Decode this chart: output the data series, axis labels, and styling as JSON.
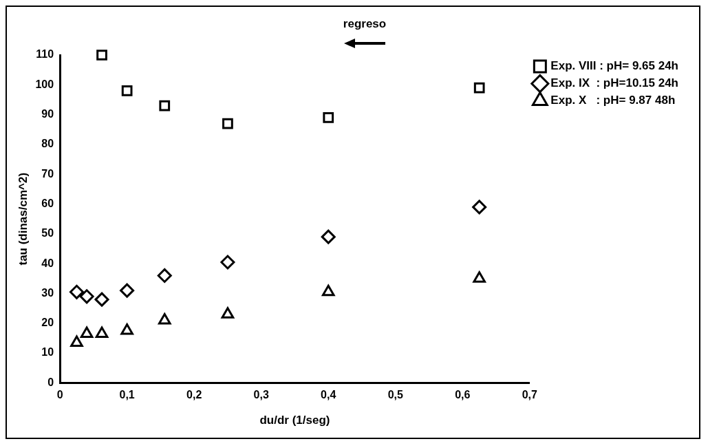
{
  "chart_data": {
    "type": "scatter",
    "xlabel": "du/dr (1/seg)",
    "ylabel": "tau (dinas/cm^2)",
    "annotations": [
      "regreso"
    ],
    "series": [
      {
        "name": "Exp. VIII : pH= 9.65 24h",
        "color": "#000000",
        "marker": "square",
        "x": [
          0.0625,
          0.1,
          0.156,
          0.25,
          0.4,
          0.625
        ],
        "values": [
          110,
          98,
          93,
          87,
          89,
          99
        ]
      },
      {
        "name": "Exp. IX  : pH=10.15 24h",
        "color": "#000000",
        "marker": "diamond",
        "x": [
          0.025,
          0.04,
          0.0625,
          0.1,
          0.156,
          0.25,
          0.4,
          0.625
        ],
        "values": [
          30.5,
          29,
          28,
          31,
          36,
          40.5,
          49,
          59
        ]
      },
      {
        "name": "Exp. X   : pH= 9.87 48h",
        "color": "#000000",
        "marker": "triangle",
        "x": [
          0.025,
          0.04,
          0.0625,
          0.1,
          0.156,
          0.25,
          0.4,
          0.625
        ],
        "values": [
          13.5,
          16.5,
          16.5,
          17.5,
          21,
          23,
          30.5,
          35
        ]
      }
    ],
    "xlim": [
      0,
      0.7
    ],
    "xticks": [
      0,
      {
        "value": 0.1,
        "label": "0,1"
      },
      {
        "value": 0.2,
        "label": "0,2"
      },
      {
        "value": 0.3,
        "label": "0,3"
      },
      {
        "value": 0.4,
        "label": "0,4"
      },
      {
        "value": 0.5,
        "label": "0,5"
      },
      {
        "value": 0.6,
        "label": "0,6"
      },
      {
        "value": 0.7,
        "label": "0,7"
      }
    ],
    "ylim": [
      0,
      110
    ],
    "yticks": [
      0,
      10,
      20,
      30,
      40,
      50,
      60,
      70,
      80,
      90,
      100,
      110
    ],
    "grid": false,
    "legend": "top right"
  }
}
